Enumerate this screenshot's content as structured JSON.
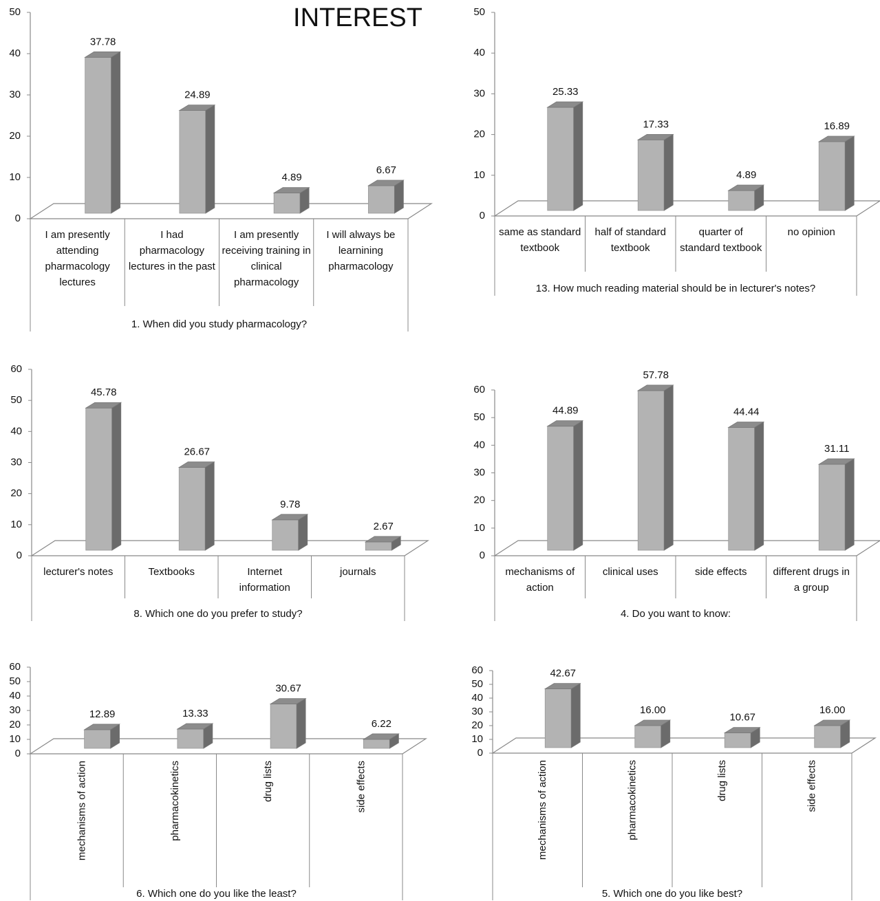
{
  "title": "INTEREST",
  "chart_data": [
    {
      "type": "bar",
      "xlabel": "1. When did you study pharmacology?",
      "categories": [
        "I am presently attending pharmacology lectures",
        "I had pharmacology lectures in the past",
        "I am presently receiving training in clinical pharmacology",
        "I will always be learnining pharmacology"
      ],
      "values": [
        37.78,
        24.89,
        4.89,
        6.67
      ],
      "ylim": [
        0,
        50
      ],
      "yticks": [
        0,
        10,
        20,
        30,
        40,
        50
      ],
      "color": "#b3b3b3"
    },
    {
      "type": "bar",
      "xlabel": "13. How much reading material should be in lecturer's notes?",
      "categories": [
        "same as standard textbook",
        "half of standard textbook",
        "quarter of standard textbook",
        "no opinion"
      ],
      "values": [
        25.33,
        17.33,
        4.89,
        16.89
      ],
      "ylim": [
        0,
        50
      ],
      "yticks": [
        0,
        10,
        20,
        30,
        40,
        50
      ],
      "color": "#b3b3b3"
    },
    {
      "type": "bar",
      "xlabel": "8. Which one do you prefer to study?",
      "categories": [
        "lecturer's notes",
        "Textbooks",
        "Internet information",
        "journals"
      ],
      "values": [
        45.78,
        26.67,
        9.78,
        2.67
      ],
      "ylim": [
        0,
        60
      ],
      "yticks": [
        0,
        10,
        20,
        30,
        40,
        50,
        60
      ],
      "color": "#b3b3b3"
    },
    {
      "type": "bar",
      "xlabel": "4. Do you want to know:",
      "categories": [
        "mechanisms of action",
        "clinical uses",
        "side effects",
        "different drugs in a group"
      ],
      "values": [
        44.89,
        57.78,
        44.44,
        31.11
      ],
      "ylim": [
        0,
        60
      ],
      "yticks": [
        0,
        10,
        20,
        30,
        40,
        50,
        60
      ],
      "color": "#b3b3b3"
    },
    {
      "type": "bar",
      "xlabel": "6. Which one do you like the least?",
      "categories": [
        "mechanisms of action",
        "pharmacokinetics",
        "drug lists",
        "side effects"
      ],
      "values": [
        12.89,
        13.33,
        30.67,
        6.22
      ],
      "ylim": [
        0,
        60
      ],
      "yticks": [
        0,
        10,
        20,
        30,
        40,
        50,
        60
      ],
      "color": "#b3b3b3"
    },
    {
      "type": "bar",
      "xlabel": "5. Which one do you like best?",
      "categories": [
        "mechanisms of action",
        "pharmacokinetics",
        "drug lists",
        "side effects"
      ],
      "values": [
        42.67,
        16,
        10.67,
        16
      ],
      "value_labels": [
        "42.67",
        "16.00",
        "10.67",
        "16.00"
      ],
      "ylim": [
        0,
        60
      ],
      "yticks": [
        0,
        10,
        20,
        30,
        40,
        50,
        60
      ],
      "color": "#b3b3b3"
    }
  ]
}
